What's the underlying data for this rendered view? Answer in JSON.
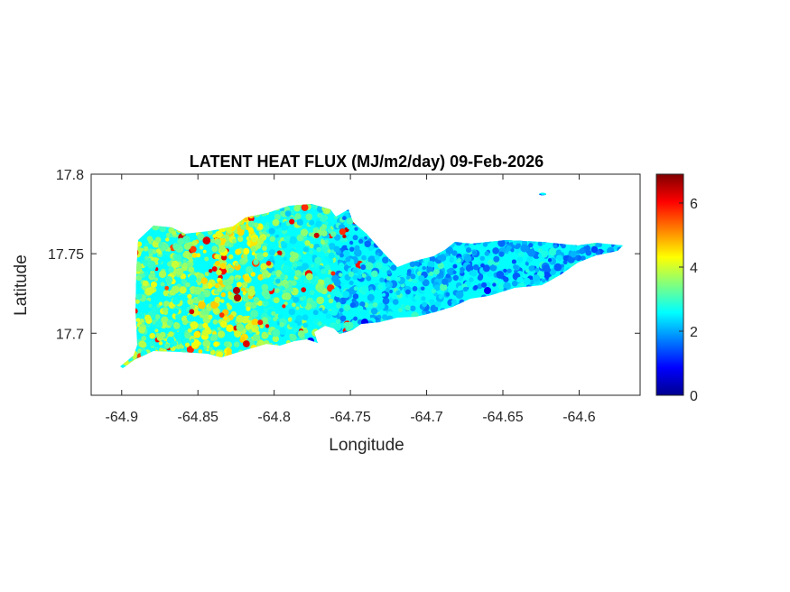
{
  "chart_data": {
    "type": "heatmap",
    "title": "LATENT HEAT FLUX (MJ/m2/day) 09-Feb-2026",
    "xlabel": "Longitude",
    "ylabel": "Latitude",
    "xlim": [
      -64.92,
      -64.56
    ],
    "ylim": [
      17.661,
      17.8
    ],
    "xticks": [
      -64.9,
      -64.85,
      -64.8,
      -64.75,
      -64.7,
      -64.65,
      -64.6
    ],
    "xtick_labels": [
      "-64.9",
      "-64.85",
      "-64.8",
      "-64.75",
      "-64.7",
      "-64.65",
      "-64.6"
    ],
    "yticks": [
      17.7,
      17.75,
      17.8
    ],
    "ytick_labels": [
      "17.7",
      "17.75",
      "17.8"
    ],
    "colorbar": {
      "colormap": "jet",
      "range": [
        0,
        6.9
      ],
      "ticks": [
        0,
        2,
        4,
        6
      ],
      "tick_labels": [
        "0",
        "2",
        "4",
        "6"
      ]
    },
    "grid": false,
    "spatial_pattern": {
      "west_typical": 3.4,
      "central_typical": 3.0,
      "east_typical": 2.1,
      "max_hotspots": 6.5
    }
  }
}
